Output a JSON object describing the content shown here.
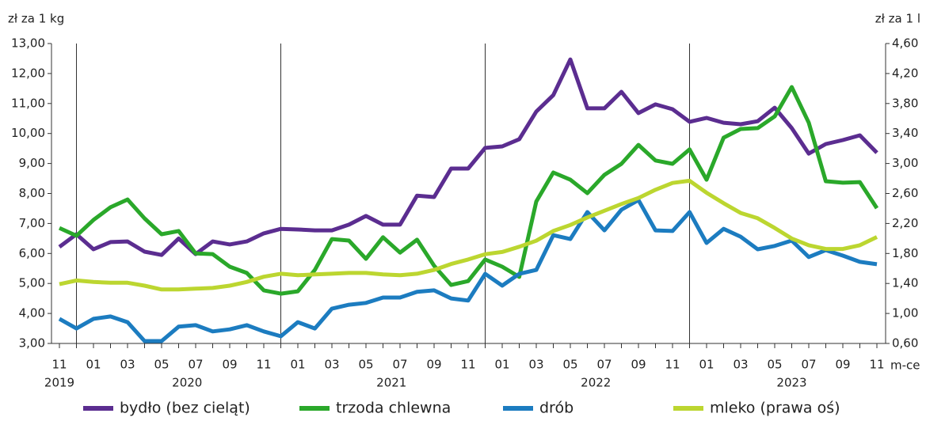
{
  "chart_data": {
    "type": "line",
    "y_label": "zł za 1 kg",
    "y2_label": "zł za 1 l",
    "x_label": "m-ce",
    "categories": [
      "11",
      null,
      "01",
      null,
      "03",
      null,
      "05",
      null,
      "07",
      null,
      "09",
      null,
      "11",
      null,
      "01",
      null,
      "03",
      null,
      "05",
      null,
      "07",
      null,
      "09",
      null,
      "11",
      null,
      "01",
      null,
      "03",
      null,
      "05",
      null,
      "07",
      null,
      "09",
      null,
      "11",
      null,
      "01",
      null,
      "03",
      null,
      "05",
      null,
      "07",
      null,
      "09",
      null,
      "11"
    ],
    "years": [
      "2019",
      "2020",
      "2021",
      "2022",
      "2023"
    ],
    "ylim": [
      3,
      13
    ],
    "yticks": [
      {
        "value": 3,
        "label": "3,00"
      },
      {
        "value": 4,
        "label": "4,00"
      },
      {
        "value": 5,
        "label": "5,00"
      },
      {
        "value": 6,
        "label": "6,00"
      },
      {
        "value": 7,
        "label": "7,00"
      },
      {
        "value": 8,
        "label": "8,00"
      },
      {
        "value": 9,
        "label": "9,00"
      },
      {
        "value": 10,
        "label": "10,00"
      },
      {
        "value": 11,
        "label": "11,00"
      },
      {
        "value": 12,
        "label": "12,00"
      },
      {
        "value": 13,
        "label": "13,00"
      }
    ],
    "y2lim": [
      0.6,
      4.6
    ],
    "y2ticks": [
      {
        "value": 0.6,
        "label": "0,60"
      },
      {
        "value": 1.0,
        "label": "1,00"
      },
      {
        "value": 1.4,
        "label": "1,40"
      },
      {
        "value": 1.8,
        "label": "1,80"
      },
      {
        "value": 2.2,
        "label": "2,20"
      },
      {
        "value": 2.6,
        "label": "2,60"
      },
      {
        "value": 3.0,
        "label": "3,00"
      },
      {
        "value": 3.4,
        "label": "3,40"
      },
      {
        "value": 3.8,
        "label": "3,80"
      },
      {
        "value": 4.2,
        "label": "4,20"
      },
      {
        "value": 4.6,
        "label": "4,60"
      }
    ],
    "grid": false,
    "legend": "bottom",
    "series": [
      {
        "name": "bydło (bez cieląt)",
        "color": "#5b2d90",
        "values": [
          6.22,
          6.64,
          6.14,
          6.38,
          6.4,
          6.06,
          5.95,
          6.5,
          5.98,
          6.4,
          6.3,
          6.4,
          6.67,
          6.82,
          6.8,
          6.77,
          6.77,
          6.96,
          7.25,
          6.96,
          6.96,
          7.93,
          7.88,
          8.83,
          8.83,
          9.52,
          9.57,
          9.81,
          10.73,
          11.28,
          12.47,
          10.84,
          10.84,
          11.39,
          10.68,
          10.97,
          10.81,
          10.39,
          10.52,
          10.36,
          10.31,
          10.41,
          10.86,
          10.18,
          9.33,
          9.65,
          9.78,
          9.94,
          9.36
        ]
      },
      {
        "name": "trzoda chlewna",
        "color": "#2aa82a",
        "values": [
          6.85,
          6.59,
          7.12,
          7.54,
          7.8,
          7.17,
          6.64,
          6.75,
          6.0,
          5.98,
          5.56,
          5.35,
          4.77,
          4.66,
          4.74,
          5.45,
          6.48,
          6.43,
          5.82,
          6.54,
          6.03,
          6.46,
          5.59,
          4.95,
          5.08,
          5.8,
          5.56,
          5.22,
          7.73,
          8.7,
          8.46,
          8.01,
          8.62,
          8.99,
          9.62,
          9.1,
          8.99,
          9.47,
          8.46,
          9.86,
          10.15,
          10.18,
          10.57,
          11.55,
          10.36,
          8.41,
          8.36,
          8.38,
          7.51
        ]
      },
      {
        "name": "drób",
        "color": "#1c7cc0",
        "values": [
          3.82,
          3.5,
          3.82,
          3.9,
          3.71,
          3.08,
          3.08,
          3.56,
          3.61,
          3.4,
          3.47,
          3.61,
          3.4,
          3.24,
          3.71,
          3.5,
          4.16,
          4.29,
          4.35,
          4.53,
          4.53,
          4.72,
          4.77,
          4.5,
          4.43,
          5.32,
          4.93,
          5.32,
          5.45,
          6.61,
          6.48,
          7.38,
          6.77,
          7.46,
          7.78,
          6.77,
          6.75,
          7.38,
          6.35,
          6.82,
          6.56,
          6.14,
          6.25,
          6.43,
          5.88,
          6.11,
          5.93,
          5.72,
          5.64
        ]
      },
      {
        "name": "mleko (prawa oś)",
        "color": "#bcd630",
        "axis": "y2",
        "values": [
          1.39,
          1.44,
          1.42,
          1.41,
          1.41,
          1.37,
          1.32,
          1.32,
          1.33,
          1.34,
          1.37,
          1.42,
          1.49,
          1.53,
          1.51,
          1.52,
          1.53,
          1.54,
          1.54,
          1.52,
          1.51,
          1.53,
          1.58,
          1.66,
          1.72,
          1.79,
          1.82,
          1.89,
          1.97,
          2.1,
          2.18,
          2.28,
          2.37,
          2.46,
          2.54,
          2.65,
          2.74,
          2.77,
          2.61,
          2.47,
          2.34,
          2.27,
          2.14,
          2.0,
          1.91,
          1.86,
          1.86,
          1.91,
          2.02
        ]
      }
    ]
  }
}
